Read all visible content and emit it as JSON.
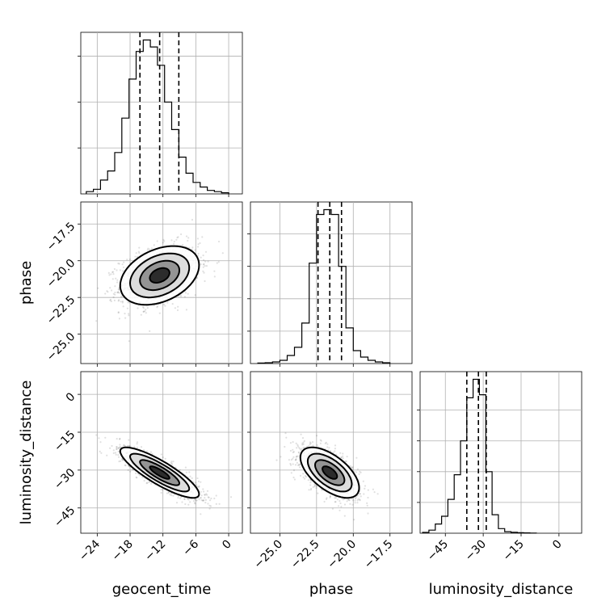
{
  "chart_data": {
    "type": "corner",
    "grid": true,
    "parameters": [
      {
        "key": "geocent_time",
        "label": "geocent_time",
        "range": [
          -27,
          2.5
        ],
        "ticks": [
          -24,
          -18,
          -12,
          -6,
          0
        ],
        "tick_labels": [
          "−24",
          "−18",
          "−12",
          "−6",
          "0"
        ]
      },
      {
        "key": "phase",
        "label": "phase",
        "range": [
          -27,
          -16
        ],
        "ticks": [
          -25.0,
          -22.5,
          -20.0,
          -17.5
        ],
        "tick_labels": [
          "−25.0",
          "−22.5",
          "−20.0",
          "−17.5"
        ]
      },
      {
        "key": "luminosity_distance",
        "label": "luminosity_distance",
        "range": [
          -55,
          9
        ],
        "ticks": [
          -45,
          -30,
          -15,
          0
        ],
        "tick_labels": [
          "−45",
          "−30",
          "−15",
          "0"
        ]
      }
    ],
    "diagonal": [
      {
        "param": "geocent_time",
        "bin_edges": [
          -26,
          -24.7,
          -23.4,
          -22.1,
          -20.8,
          -19.5,
          -18.2,
          -16.9,
          -15.6,
          -14.3,
          -13,
          -11.7,
          -10.4,
          -9.1,
          -7.8,
          -6.5,
          -5.2,
          -3.9,
          -2.6,
          -1.3,
          0
        ],
        "counts": [
          1,
          2,
          6,
          10,
          18,
          33,
          50,
          62,
          67,
          64,
          56,
          40,
          28,
          16,
          9,
          5,
          3,
          1.5,
          1,
          0.5
        ],
        "quantiles": [
          -16.2,
          -12.6,
          -9.1
        ],
        "y_ticks": [
          20,
          40,
          60
        ]
      },
      {
        "param": "phase",
        "bin_edges": [
          -26.5,
          -26.0,
          -25.5,
          -25.0,
          -24.5,
          -24.0,
          -23.5,
          -23.0,
          -22.5,
          -22.0,
          -21.5,
          -21.0,
          -20.5,
          -20.0,
          -19.5,
          -19.0,
          -18.5,
          -18.0,
          -17.5
        ],
        "counts": [
          0.3,
          0.5,
          1,
          2,
          5,
          10,
          25,
          62,
          92,
          95,
          92,
          60,
          22,
          8,
          4,
          2,
          1,
          0.5
        ],
        "quantiles": [
          -22.4,
          -21.6,
          -20.8
        ],
        "y_ticks": [
          20,
          40,
          60,
          80
        ]
      },
      {
        "param": "luminosity_distance",
        "bin_edges": [
          -54,
          -51.5,
          -49,
          -46.5,
          -44,
          -41.5,
          -39,
          -36.5,
          -34,
          -31.5,
          -29,
          -26.5,
          -24,
          -21.5,
          -19,
          -16.5,
          -14,
          -11.5,
          -9
        ],
        "counts": [
          0.5,
          2,
          6,
          11,
          22,
          38,
          60,
          88,
          100,
          90,
          40,
          12,
          3,
          1,
          0.6,
          0.3,
          0.2,
          0.1
        ],
        "quantiles": [
          -36.5,
          -31.9,
          -28.8
        ],
        "y_ticks": [
          20,
          40,
          60,
          80
        ]
      }
    ],
    "pairs": [
      {
        "x": "geocent_time",
        "y": "phase",
        "center": [
          -12.6,
          -21.0
        ],
        "sigma": [
          3.6,
          1.0
        ],
        "rho": 0.35
      },
      {
        "x": "geocent_time",
        "y": "luminosity_distance",
        "center": [
          -12.6,
          -31.0
        ],
        "sigma": [
          3.6,
          5.0
        ],
        "rho": -0.85
      },
      {
        "x": "phase",
        "y": "luminosity_distance",
        "center": [
          -21.6,
          -31.0
        ],
        "sigma": [
          1.0,
          5.0
        ],
        "rho": -0.6
      }
    ],
    "contour_levels_sigma": [
      0.5,
      1.0,
      1.5,
      2.0
    ]
  }
}
